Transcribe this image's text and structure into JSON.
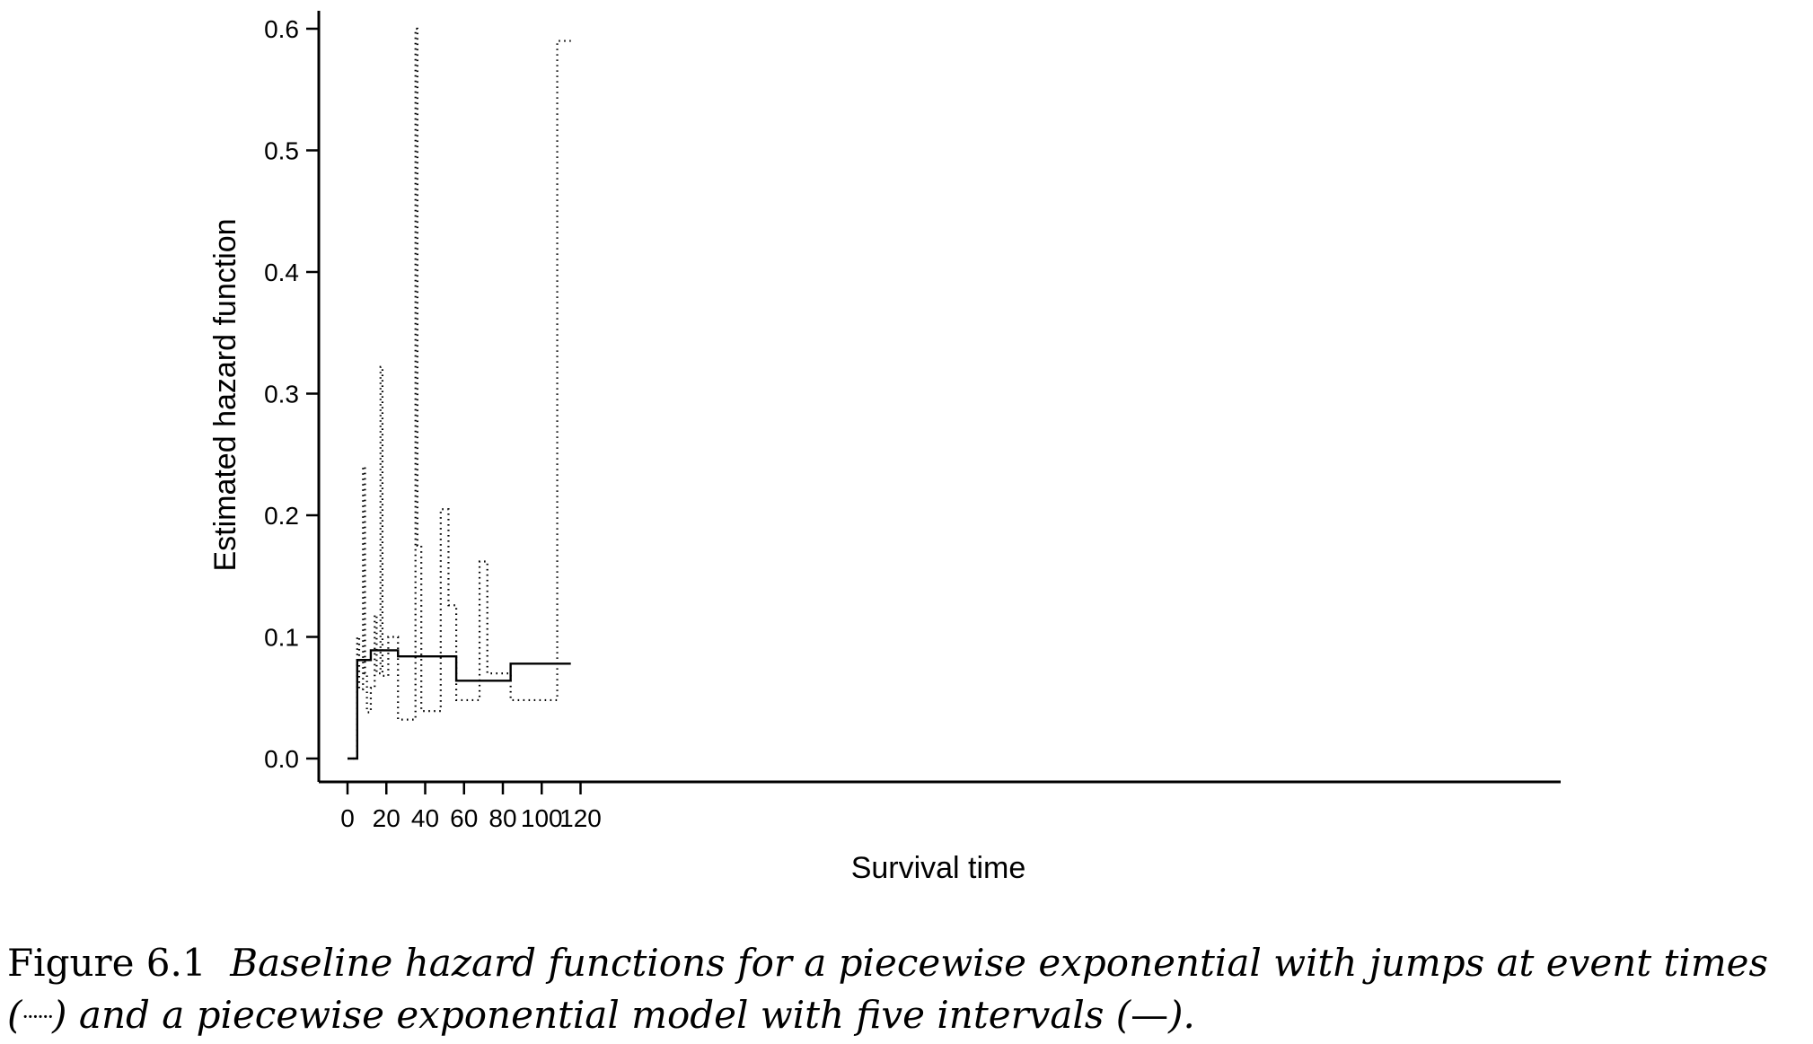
{
  "chart_data": {
    "type": "line",
    "xlabel": "Survival time",
    "ylabel": "Estimated hazard function",
    "xlim": [
      -3,
      125
    ],
    "ylim": [
      -0.02,
      0.61
    ],
    "xticks": [
      0,
      20,
      40,
      60,
      80,
      100,
      120
    ],
    "yticks": [
      0.0,
      0.1,
      0.2,
      0.3,
      0.4,
      0.5,
      0.6
    ],
    "xtick_labels": [
      "0",
      "20",
      "40",
      "60",
      "80",
      "100",
      "120"
    ],
    "ytick_labels": [
      "0.0",
      "0.1",
      "0.2",
      "0.3",
      "0.4",
      "0.5",
      "0.6"
    ],
    "grid": false,
    "series": [
      {
        "style": "dotted",
        "step": "post",
        "x": [
          0,
          5,
          6,
          8,
          9,
          10,
          12,
          14,
          15,
          17,
          18,
          21,
          26,
          35,
          36,
          38,
          48,
          52,
          56,
          68,
          72,
          84,
          108,
          115
        ],
        "y": [
          0.0,
          0.1,
          0.057,
          0.24,
          0.07,
          0.038,
          0.058,
          0.118,
          0.07,
          0.322,
          0.068,
          0.1,
          0.032,
          0.6,
          0.175,
          0.039,
          0.205,
          0.126,
          0.048,
          0.162,
          0.07,
          0.048,
          0.59,
          0.59
        ]
      },
      {
        "style": "solid",
        "step": "post",
        "x": [
          0,
          5,
          12,
          26,
          56,
          84,
          115
        ],
        "y": [
          0.0,
          0.081,
          0.089,
          0.084,
          0.064,
          0.078,
          0.078
        ]
      }
    ]
  },
  "caption": {
    "number": "Figure 6.1",
    "text_1": "Baseline hazard functions for a piecewise exponential with jumps at event times (",
    "dotted_symbol": "······",
    "text_2": ") and a piecewise exponential model with five intervals (",
    "solid_symbol": "—",
    "text_3": ")."
  }
}
